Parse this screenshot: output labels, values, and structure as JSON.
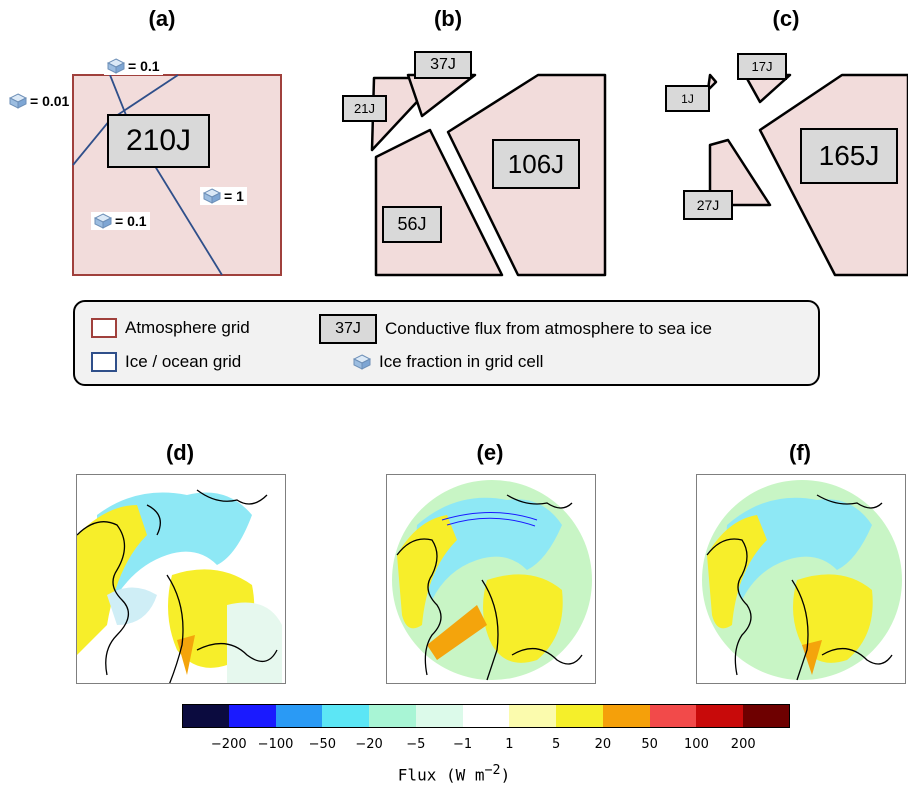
{
  "panels_top": {
    "a": {
      "label": "(a)",
      "flux": "210J",
      "fractions": {
        "top": "= 0.1",
        "left": "= 0.01",
        "right": "= 1",
        "bottom": "= 0.1"
      }
    },
    "b": {
      "label": "(b)",
      "fluxes": {
        "top": "37J",
        "left": "21J",
        "right": "106J",
        "bottom": "56J"
      }
    },
    "c": {
      "label": "(c)",
      "fluxes": {
        "top": "17J",
        "left": "1J",
        "right": "165J",
        "bottom": "27J"
      }
    }
  },
  "legend": {
    "atmosphere": "Atmosphere grid",
    "ice_ocean": "Ice / ocean grid",
    "flux_box": "37J",
    "flux_desc": "Conductive flux from atmosphere to sea ice",
    "ice_fraction": "Ice fraction in grid cell",
    "colors": {
      "atmosphere": "#a0403c",
      "ice_ocean": "#2f4f8a",
      "cell_fill": "#f2dcdb"
    }
  },
  "panels_maps": {
    "d": "(d)",
    "e": "(e)",
    "f": "(f)"
  },
  "colorbar": {
    "colors": [
      "#0b0b3f",
      "#1a1aff",
      "#2a9af5",
      "#5ce6f5",
      "#a8f5d5",
      "#dcfaea",
      "#ffffff",
      "#fbfbad",
      "#f5ef2a",
      "#f5a00a",
      "#f24a4a",
      "#c80a0a",
      "#6e0000"
    ],
    "ticks": [
      "−200",
      "−100",
      "−50",
      "−20",
      "−5",
      "−1",
      "1",
      "5",
      "20",
      "50",
      "100",
      "200"
    ],
    "title": "Flux (W m",
    "title_exp": "−2",
    "title_close": ")"
  }
}
